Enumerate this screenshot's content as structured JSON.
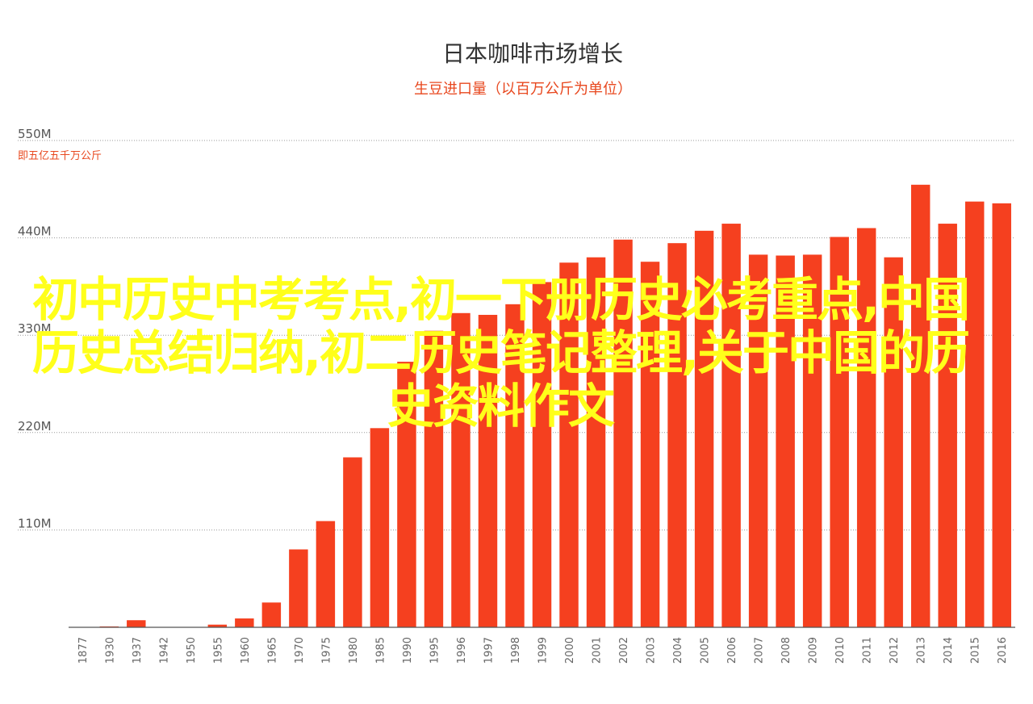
{
  "colors": {
    "bar": "#f5401f",
    "accent": "#e8481f",
    "title": "#333333",
    "overlay_text": "#ffff1a"
  },
  "overlay": {
    "text": "初中历史中考考点,初一下册历史必考重点,中国历史总结归纳,初二历史笔记整理,关于中国的历史资料作文"
  },
  "chart_data": {
    "type": "bar",
    "title": "日本咖啡市场增长",
    "subtitle": "生豆进口量（以百万公斤为单位）",
    "ylabel_unit": "即五亿五千万公斤",
    "ylim": [
      0,
      550
    ],
    "yticks": [
      {
        "value": 550,
        "label": "550M"
      },
      {
        "value": 440,
        "label": "440M"
      },
      {
        "value": 330,
        "label": "330M"
      },
      {
        "value": 220,
        "label": "220M"
      },
      {
        "value": 110,
        "label": "110M"
      }
    ],
    "grid": true,
    "categories": [
      "1877",
      "1930",
      "1937",
      "1942",
      "1950",
      "1955",
      "1960",
      "1965",
      "1970",
      "1975",
      "1980",
      "1985",
      "1990",
      "1995",
      "1996",
      "1997",
      "1998",
      "1999",
      "2000",
      "2001",
      "2002",
      "2003",
      "2004",
      "2005",
      "2006",
      "2007",
      "2008",
      "2009",
      "2010",
      "2011",
      "2012",
      "2013",
      "2014",
      "2015",
      "2016"
    ],
    "values": [
      0,
      1,
      8,
      0,
      0,
      3,
      10,
      28,
      88,
      120,
      192,
      225,
      300,
      335,
      355,
      353,
      365,
      390,
      412,
      418,
      438,
      413,
      434,
      448,
      456,
      421,
      420,
      421,
      441,
      451,
      418,
      500,
      456,
      481,
      479
    ]
  }
}
